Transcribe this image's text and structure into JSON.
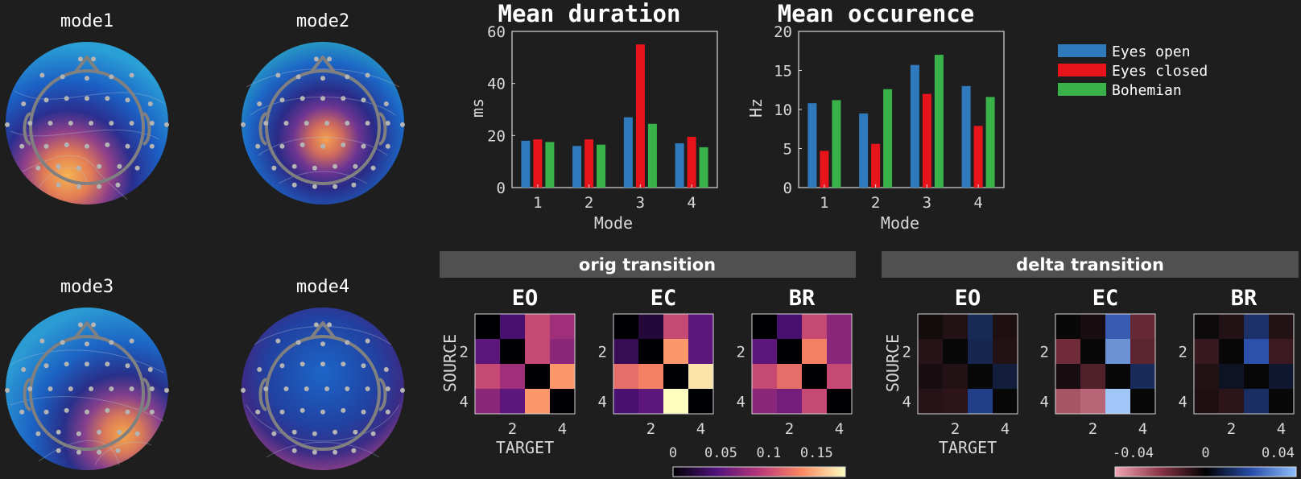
{
  "topomaps": [
    {
      "title": "mode1",
      "theme": "m1"
    },
    {
      "title": "mode2",
      "theme": "m2"
    },
    {
      "title": "mode3",
      "theme": "m3"
    },
    {
      "title": "mode4",
      "theme": "m4"
    }
  ],
  "legend": [
    {
      "label": "Eyes open",
      "color": "#2f79bd"
    },
    {
      "label": "Eyes closed",
      "color": "#e8141c"
    },
    {
      "label": "Bohemian",
      "color": "#3ab24a"
    }
  ],
  "chart_data": [
    {
      "type": "bar",
      "title": "Mean duration",
      "xlabel": "Mode",
      "ylabel": "ms",
      "categories": [
        "1",
        "2",
        "3",
        "4"
      ],
      "ylim": [
        0,
        60
      ],
      "yticks": [
        0,
        20,
        40,
        60
      ],
      "series": [
        {
          "name": "Eyes open",
          "values": [
            18,
            16,
            27,
            17
          ]
        },
        {
          "name": "Eyes closed",
          "values": [
            18.5,
            18.5,
            55,
            19.5
          ]
        },
        {
          "name": "Bohemian",
          "values": [
            17.5,
            16.5,
            24.5,
            15.5
          ]
        }
      ]
    },
    {
      "type": "bar",
      "title": "Mean occurence",
      "xlabel": "Mode",
      "ylabel": "Hz",
      "categories": [
        "1",
        "2",
        "3",
        "4"
      ],
      "ylim": [
        0,
        20
      ],
      "yticks": [
        0,
        5,
        10,
        15,
        20
      ],
      "series": [
        {
          "name": "Eyes open",
          "values": [
            10.8,
            9.5,
            15.7,
            13
          ]
        },
        {
          "name": "Eyes closed",
          "values": [
            4.7,
            5.6,
            12,
            7.9
          ]
        },
        {
          "name": "Bohemian",
          "values": [
            11.2,
            12.6,
            17,
            11.6
          ]
        }
      ]
    },
    {
      "type": "heatmap",
      "group_title": "orig transition",
      "panels": [
        "EO",
        "EC",
        "BR"
      ],
      "ylabel": "SOURCE",
      "xlabel": "TARGET",
      "xticks": [
        "2",
        "4"
      ],
      "yticks": [
        "2",
        "4"
      ],
      "colorbar_ticks": [
        "0",
        "0.05",
        "0.1",
        "0.15"
      ],
      "clim": [
        0,
        0.18
      ],
      "matrices": [
        [
          [
            0,
            0.04,
            0.1,
            0.08
          ],
          [
            0.05,
            0,
            0.1,
            0.07
          ],
          [
            0.1,
            0.08,
            0,
            0.14
          ],
          [
            0.07,
            0.05,
            0.14,
            0
          ]
        ],
        [
          [
            0,
            0.02,
            0.1,
            0.05
          ],
          [
            0.03,
            0,
            0.14,
            0.05
          ],
          [
            0.12,
            0.13,
            0,
            0.17
          ],
          [
            0.04,
            0.05,
            0.18,
            0
          ]
        ],
        [
          [
            0,
            0.04,
            0.1,
            0.07
          ],
          [
            0.05,
            0,
            0.13,
            0.07
          ],
          [
            0.1,
            0.12,
            0,
            0.1
          ],
          [
            0.07,
            0.06,
            0.1,
            0
          ]
        ]
      ]
    },
    {
      "type": "heatmap",
      "group_title": "delta transition",
      "panels": [
        "EO",
        "EC",
        "BR"
      ],
      "ylabel": "SOURCE",
      "xlabel": "TARGET",
      "xticks": [
        "2",
        "4"
      ],
      "yticks": [
        "2",
        "4"
      ],
      "colorbar_ticks": [
        "-0.04",
        "0",
        "0.04"
      ],
      "clim": [
        -0.05,
        0.05
      ],
      "matrices": [
        [
          [
            -0.002,
            -0.005,
            0.012,
            -0.004
          ],
          [
            -0.006,
            0,
            0.011,
            -0.005
          ],
          [
            -0.003,
            -0.005,
            0,
            0.008
          ],
          [
            -0.006,
            -0.007,
            0.02,
            0
          ]
        ],
        [
          [
            0,
            -0.003,
            0.028,
            -0.018
          ],
          [
            -0.02,
            0,
            0.038,
            -0.016
          ],
          [
            -0.003,
            -0.014,
            0,
            0.013
          ],
          [
            -0.032,
            -0.036,
            0.048,
            0
          ]
        ],
        [
          [
            -0.001,
            -0.005,
            0.015,
            -0.005
          ],
          [
            -0.009,
            0,
            0.026,
            -0.01
          ],
          [
            -0.005,
            0.004,
            0,
            0.006
          ],
          [
            -0.004,
            -0.007,
            0.014,
            0
          ]
        ]
      ]
    }
  ]
}
